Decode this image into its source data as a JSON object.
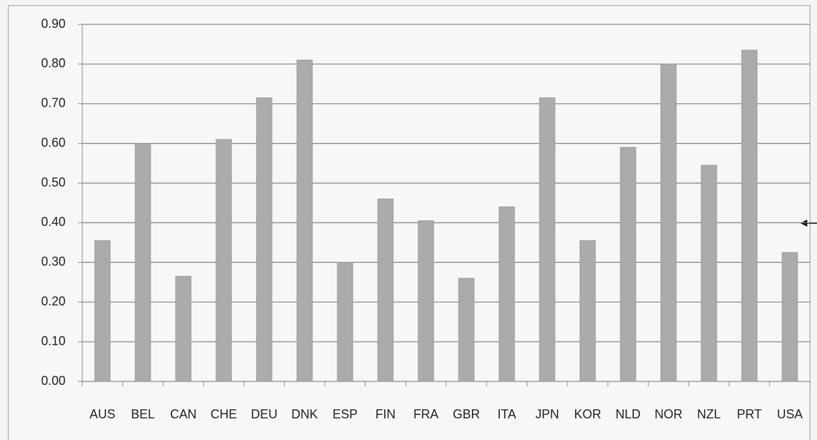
{
  "chart_data": {
    "type": "bar",
    "categories": [
      "AUS",
      "BEL",
      "CAN",
      "CHE",
      "DEU",
      "DNK",
      "ESP",
      "FIN",
      "FRA",
      "GBR",
      "ITA",
      "JPN",
      "KOR",
      "NLD",
      "NOR",
      "NZL",
      "PRT",
      "USA"
    ],
    "values": [
      0.355,
      0.6,
      0.265,
      0.61,
      0.715,
      0.81,
      0.3,
      0.46,
      0.405,
      0.26,
      0.44,
      0.715,
      0.355,
      0.59,
      0.8,
      0.545,
      0.835,
      0.325
    ],
    "color": "#ababab",
    "ylim": [
      0,
      0.9
    ],
    "yticks": [
      {
        "value": 0,
        "label": "0.00"
      },
      {
        "value": 0.1,
        "label": "0.10"
      },
      {
        "value": 0.2,
        "label": "0.20"
      },
      {
        "value": 0.3,
        "label": "0.30"
      },
      {
        "value": 0.4,
        "label": "0.40"
      },
      {
        "value": 0.5,
        "label": "0.50"
      },
      {
        "value": 0.6,
        "label": "0.60"
      },
      {
        "value": 0.7,
        "label": "0.70"
      },
      {
        "value": 0.8,
        "label": "0.80"
      },
      {
        "value": 0.9,
        "label": "0.90"
      }
    ],
    "grid": true
  }
}
